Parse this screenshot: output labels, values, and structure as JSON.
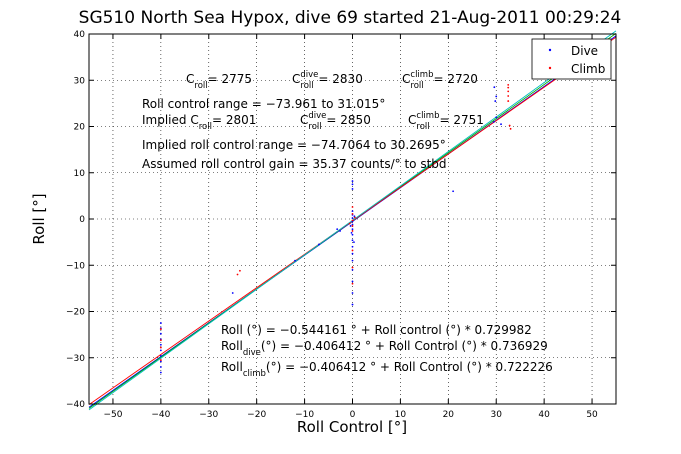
{
  "chart_data": {
    "type": "scatter",
    "title": "SG510 North Sea Hypox, dive 69 started 21-Aug-2011 00:29:24",
    "xlabel": "Roll Control [°]",
    "ylabel": "Roll [°]",
    "xlim": [
      -55,
      55
    ],
    "ylim": [
      -40,
      40
    ],
    "xticks": [
      -50,
      -40,
      -30,
      -20,
      -10,
      0,
      10,
      20,
      30,
      40,
      50
    ],
    "yticks": [
      -40,
      -30,
      -20,
      -10,
      0,
      10,
      20,
      30,
      40
    ],
    "grid": "dotted",
    "legend_position": "top-right",
    "series": [
      {
        "name": "Dive",
        "color": "#0000ff",
        "marker": "dot",
        "points": [
          [
            -40,
            -22.5
          ],
          [
            -40,
            -23.6
          ],
          [
            -40,
            -24.8
          ],
          [
            -40,
            -26
          ],
          [
            -40,
            -27.2
          ],
          [
            -40,
            -28.4
          ],
          [
            -40,
            -29.6
          ],
          [
            -40,
            -30.8
          ],
          [
            -40,
            -32
          ],
          [
            -40,
            -33.2
          ],
          [
            0,
            -18.5
          ],
          [
            0,
            -16
          ],
          [
            0,
            -13.5
          ],
          [
            0,
            -11
          ],
          [
            0,
            -9
          ],
          [
            0,
            -7.5
          ],
          [
            0,
            -6
          ],
          [
            0,
            -4.6
          ],
          [
            0,
            -3.4
          ],
          [
            0,
            -2.2
          ],
          [
            0,
            -1.2
          ],
          [
            0,
            -0.5
          ],
          [
            0,
            0.2
          ],
          [
            0,
            0.9
          ],
          [
            0,
            1.7
          ],
          [
            0,
            6.5
          ],
          [
            0,
            7.5
          ],
          [
            0,
            8.2
          ],
          [
            -0.4,
            -1.5
          ],
          [
            0.4,
            0.6
          ],
          [
            -0.2,
            -3
          ],
          [
            0.3,
            -5
          ],
          [
            -3.2,
            -2.2
          ],
          [
            -2.6,
            -2.6
          ],
          [
            -25,
            -16
          ],
          [
            -12,
            -9
          ],
          [
            -7,
            -5.5
          ],
          [
            29.6,
            28.5
          ],
          [
            29.8,
            25.5
          ],
          [
            30,
            22
          ],
          [
            30,
            26.5
          ],
          [
            29.5,
            21
          ],
          [
            31,
            20.5
          ],
          [
            21,
            6
          ]
        ]
      },
      {
        "name": "Climb",
        "color": "#ff0000",
        "marker": "dot",
        "points": [
          [
            -40,
            -23.8
          ],
          [
            -40,
            -26.2
          ],
          [
            -40,
            -27.8
          ],
          [
            -40,
            -30.5
          ],
          [
            0,
            -1.5
          ],
          [
            0,
            -0.3
          ],
          [
            0,
            1.1
          ],
          [
            0,
            2.6
          ],
          [
            0,
            -2.6
          ],
          [
            0,
            -6.8
          ],
          [
            0,
            -10.5
          ],
          [
            0,
            -14
          ],
          [
            -0.6,
            -1
          ],
          [
            0.5,
            0.3
          ],
          [
            -24,
            -12
          ],
          [
            -23.5,
            -11.2
          ],
          [
            32.5,
            25.5
          ],
          [
            32.5,
            26.6
          ],
          [
            32.5,
            27.6
          ],
          [
            32.5,
            28.4
          ],
          [
            32.5,
            29
          ],
          [
            32.8,
            20.2
          ],
          [
            33,
            19.5
          ]
        ]
      }
    ],
    "fit_lines": [
      {
        "color": "#0000ff",
        "intercept": -0.544161,
        "slope": 0.729982
      },
      {
        "color": "#00aa00",
        "intercept": -0.406412,
        "slope": 0.736929
      },
      {
        "color": "#ff0000",
        "intercept": -0.406412,
        "slope": 0.722226
      },
      {
        "color": "#00bfbf",
        "intercept": -0.3,
        "slope": 0.745
      }
    ],
    "annotations": {
      "c_roll": {
        "line": [
          {
            "main": "C",
            "sub": "roll",
            "sup": "",
            "tail": " = 2775"
          },
          {
            "main": "C",
            "sub": "roll",
            "sup": "dive",
            "tail": " = 2830"
          },
          {
            "main": "C",
            "sub": "roll",
            "sup": "climb",
            "tail": " = 2720"
          }
        ]
      },
      "range": "Roll control range = -73.961 to 31.015°",
      "implied_c_roll": {
        "line": [
          {
            "main": "Implied C",
            "sub": "roll",
            "sup": "",
            "tail": " = 2801"
          },
          {
            "main": "C",
            "sub": "roll",
            "sup": "dive",
            "tail": " = 2850"
          },
          {
            "main": "C",
            "sub": "roll",
            "sup": "climb",
            "tail": " = 2751"
          }
        ]
      },
      "implied_range": "Implied roll control range = -74.7064 to 30.2695°",
      "gain": "Assumed roll control gain = 35.37 counts/° to stbd",
      "fit_all": "Roll (°) = -0.544161 ° + Roll control (°) * 0.729982",
      "fit_dive": {
        "main": "Roll",
        "sub": "dive",
        "tail": " (°) = -0.406412 ° + Roll Control (°) * 0.736929"
      },
      "fit_climb": {
        "main": "Roll",
        "sub": "climb",
        "tail": " (°) = -0.406412 ° + Roll Control (°) * 0.722226"
      }
    }
  }
}
